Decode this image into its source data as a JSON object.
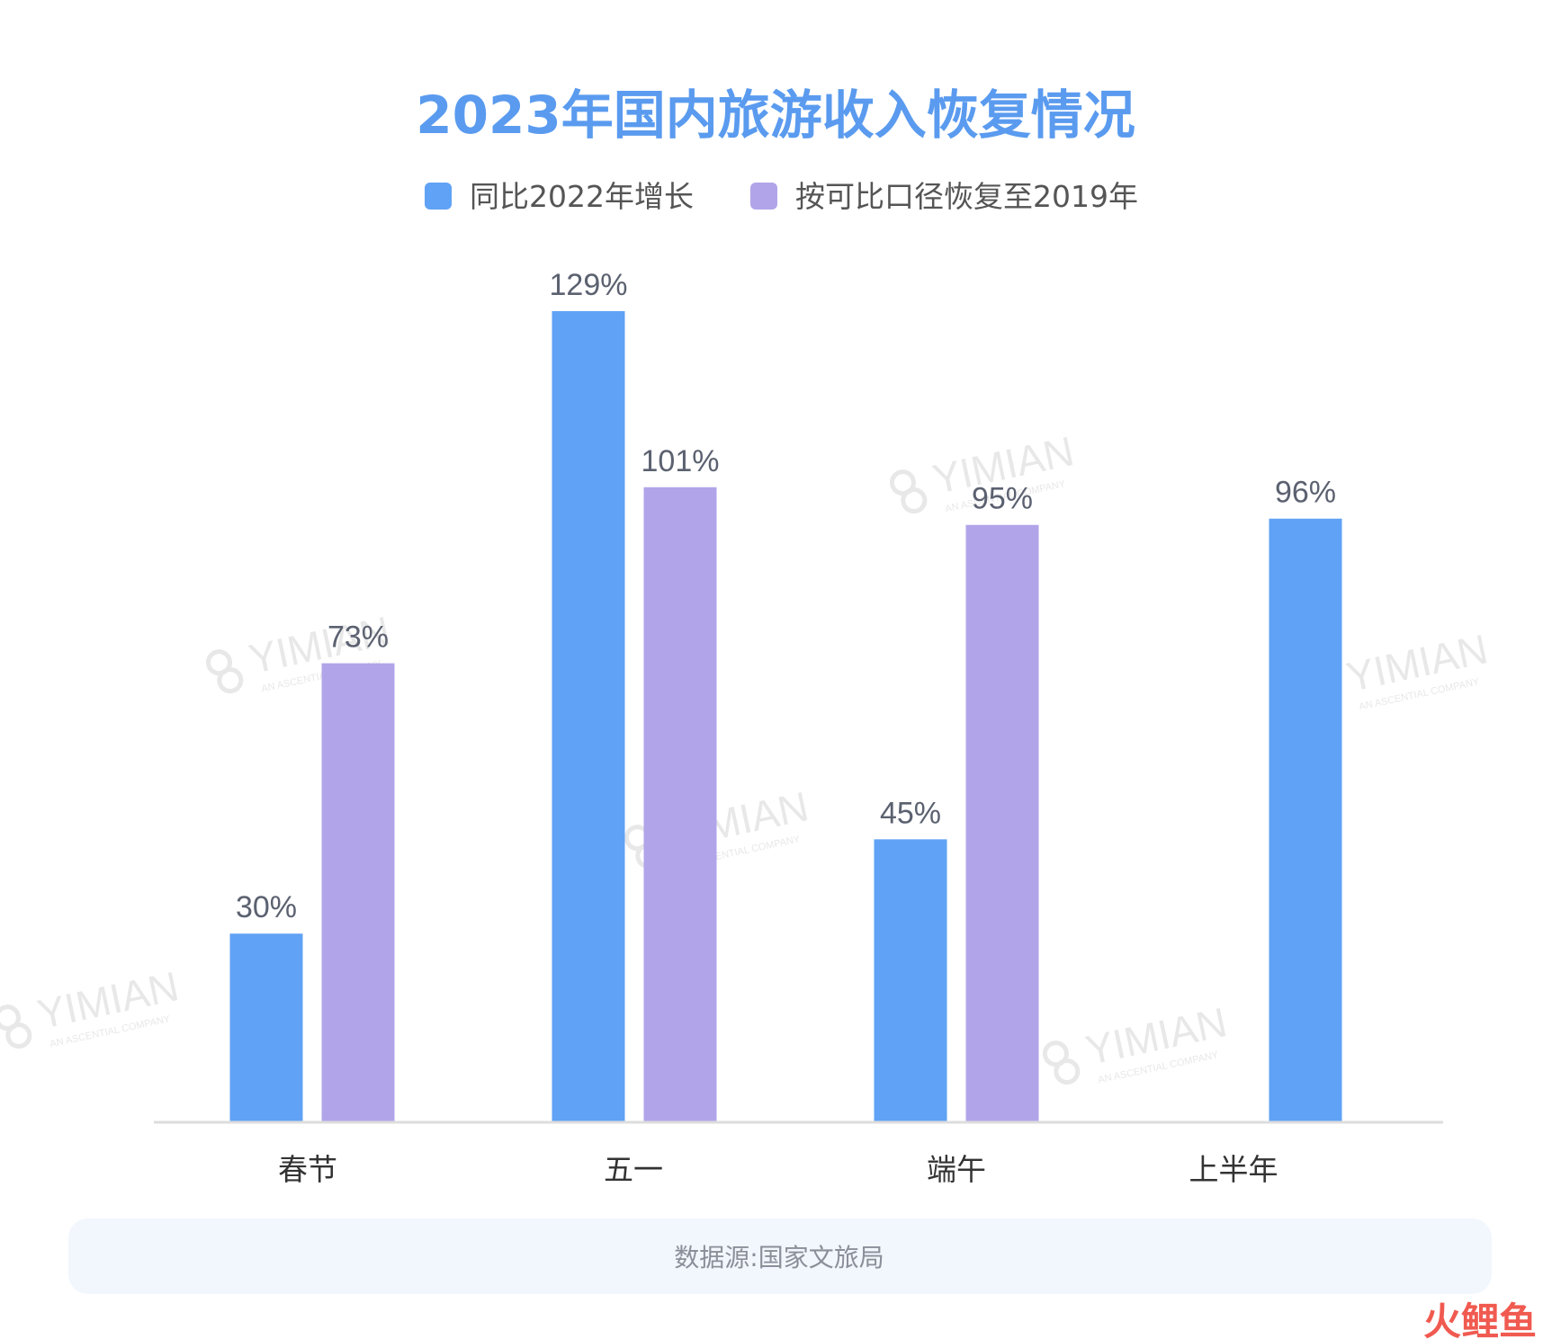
{
  "colors": {
    "title": "#5a9bef",
    "series1": "#60a2f5",
    "series2": "#b2a4e9",
    "value_label": "#5b6170",
    "category_label": "#333333",
    "axis": "#dddddd",
    "source_bg": "#f2f6fd",
    "source_text": "#8a8f99",
    "watermark": "#e8e8e8",
    "logo": "#f05a50"
  },
  "chart_data": {
    "type": "bar",
    "title": "2023年国内旅游收入恢复情况",
    "categories": [
      "春节",
      "五一",
      "端午",
      "上半年"
    ],
    "series": [
      {
        "name": "同比2022年增长",
        "values": [
          30,
          129,
          45,
          96
        ],
        "labels": [
          "30%",
          "129%",
          "45%",
          "96%"
        ]
      },
      {
        "name": "按可比口径恢复至2019年",
        "values": [
          73,
          101,
          95,
          null
        ],
        "labels": [
          "73%",
          "101%",
          "95%",
          ""
        ]
      }
    ],
    "ylim": [
      0,
      129
    ],
    "grid": false,
    "legend_position": "top-center"
  },
  "source": {
    "text": "数据源:国家文旅局"
  },
  "watermark": {
    "text": "YIMIAN",
    "subtext": "AN ASCENTIAL COMPANY"
  },
  "logo": {
    "text": "火鲤鱼"
  }
}
